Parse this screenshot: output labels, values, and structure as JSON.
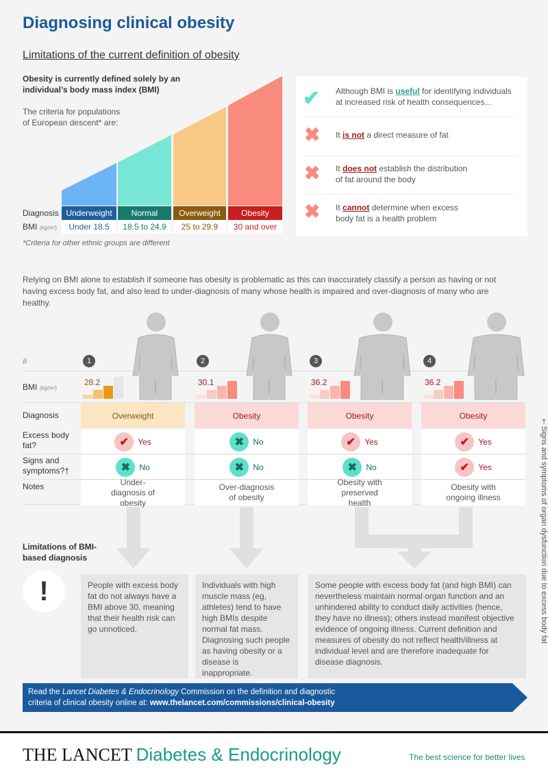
{
  "title": "Diagnosing clinical obesity",
  "subtitle": "Limitations of the current definition of obesity",
  "intro": {
    "line1": "Obesity is currently defined solely by an",
    "line2": "individual’s body mass index (BMI)",
    "criteria1": "The criteria for populations",
    "criteria2": "of European descent* are:"
  },
  "bmi_chart": {
    "diagnosis_label": "Diagnosis",
    "bmi_label": "BMI",
    "bmi_unit": "(kg/m²)",
    "categories": [
      {
        "name": "Underweight",
        "range": "Under 18.5",
        "color": "#6cb4f5",
        "label_bg": "#1d5f9e"
      },
      {
        "name": "Normal",
        "range": "18.5 to 24.9",
        "color": "#78e6d6",
        "label_bg": "#167a6c"
      },
      {
        "name": "Overweight",
        "range": "25 to 29.9",
        "color": "#f8c985",
        "label_bg": "#8a5a0e"
      },
      {
        "name": "Obesity",
        "range": "30 and over",
        "color": "#f98a7e",
        "label_bg": "#c81e1e"
      }
    ],
    "footnote": "*Criteria for other ethnic groups are different"
  },
  "limitations_box": [
    {
      "icon": "check-icon",
      "pre": "Although BMI is ",
      "em": "useful",
      "post": " for identifying individuals at increased risk of health consequences..."
    },
    {
      "icon": "cross-icon",
      "pre": "It ",
      "em": "is not",
      "post": " a direct measure of fat"
    },
    {
      "icon": "cross-icon",
      "pre": "It ",
      "em": "does not",
      "post": " establish the distribution of fat around the body"
    },
    {
      "icon": "cross-icon",
      "pre": "It ",
      "em": "cannot",
      "post": " determine when excess body fat is a health problem"
    }
  ],
  "paragraph": "Relying on BMI alone to establish if someone has obesity is problematic as this can inaccurately classify a person as having or not having excess body fat, and also lead to under-diagnosis of many whose health is impaired and over-diagnosis of many who are healthy.",
  "table": {
    "row_labels": {
      "num": "#",
      "bmi": "BMI",
      "bmi_unit": "(kg/m²)",
      "diagnosis": "Diagnosis",
      "fat": "Excess body fat?",
      "signs": "Signs and symptoms?†",
      "notes": "Notes"
    },
    "cases": [
      {
        "num": "1",
        "bmi": "28.2",
        "diagnosis": "Overweight",
        "fat": "Yes",
        "signs": "No",
        "notes": "Under-diagnosis of obesity"
      },
      {
        "num": "2",
        "bmi": "30.1",
        "diagnosis": "Obesity",
        "fat": "No",
        "signs": "No",
        "notes": "Over-diagnosis of obesity"
      },
      {
        "num": "3",
        "bmi": "36.2",
        "diagnosis": "Obesity",
        "fat": "Yes",
        "signs": "No",
        "notes": "Obesity with preserved health"
      },
      {
        "num": "4",
        "bmi": "36.2",
        "diagnosis": "Obesity",
        "fat": "Yes",
        "signs": "Yes",
        "notes": "Obesity with ongoing illness"
      }
    ]
  },
  "side_note": "†Signs and symptoms of organ dysfunction due to excess body fat",
  "limitations_label": "Limitations of BMI-based diagnosis",
  "limitation_texts": [
    "People with excess body fat do not always have a BMI above 30, meaning that their health risk can go unnoticed.",
    "Individuals with high muscle mass (eg, athletes) tend to have high BMIs despite normal fat mass. Diagnosing such people as having obesity or a disease is inappropriate.",
    "Some people with excess body fat (and high BMI) can nevertheless maintain normal organ function and an unhindered ability to conduct daily activities (hence, they have no illness); others instead manifest objective evidence of ongoing illness. Current definition and measures of obesity do not reflect health/illness at individual level and are therefore inadequate for disease diagnosis."
  ],
  "banner": {
    "pre": "Read the ",
    "journal": "Lancet Diabetes & Endocrinology",
    "mid": " Commission on the definition and diagnostic criteria of clinical obesity online at: ",
    "url": "www.thelancet.com/commissions/clinical-obesity"
  },
  "footer": {
    "brand": "THE LANCET",
    "journal": "Diabetes & Endocrinology",
    "tagline": "The best science for better lives"
  },
  "colors": {
    "title": "#1a5a96",
    "check": "#5ee0cc",
    "cross": "#f98a7e",
    "banner": "#1a5a9c"
  }
}
